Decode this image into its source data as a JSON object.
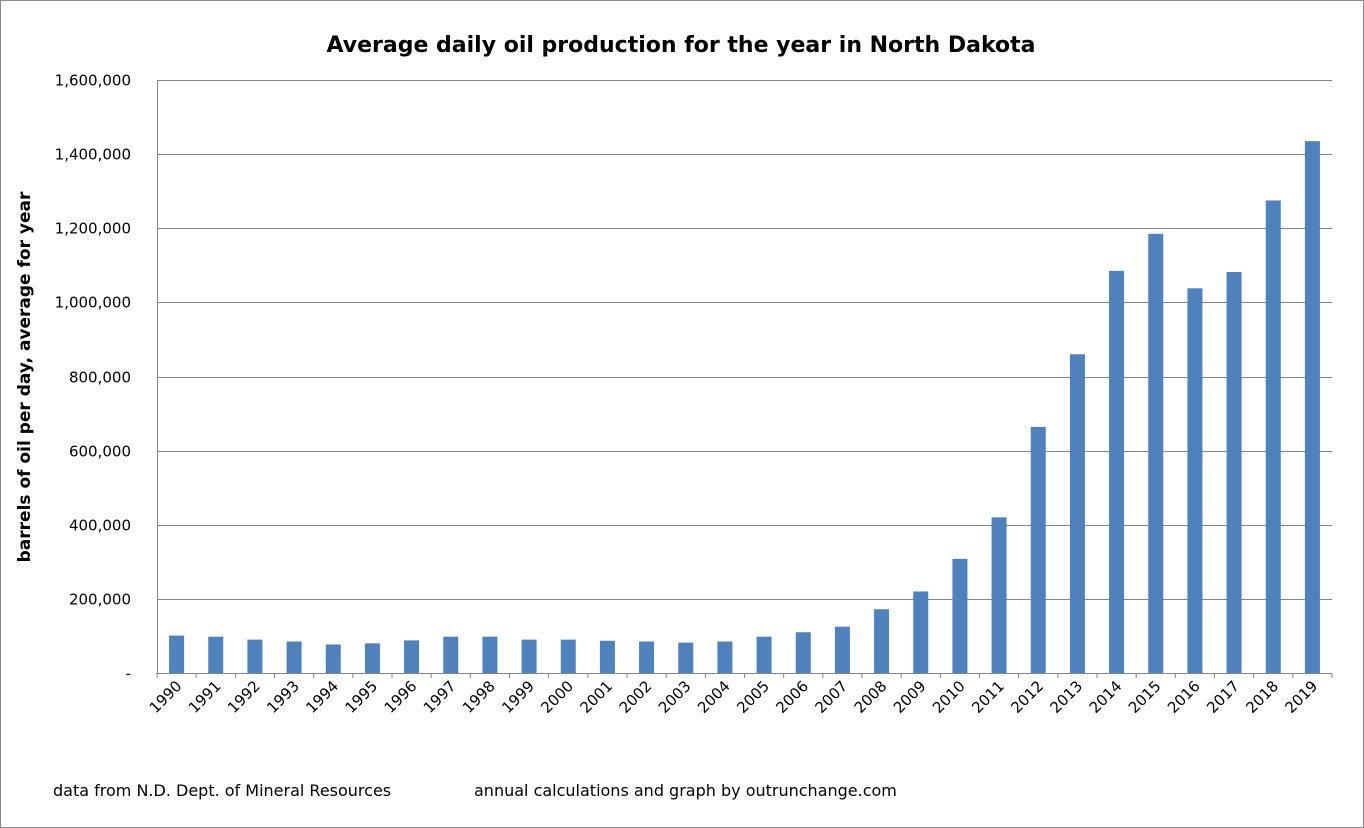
{
  "chart_data": {
    "type": "bar",
    "title": "Average daily oil production for the year in North Dakota",
    "xlabel": "",
    "ylabel": "barrels of oil per day, average for year",
    "ylim": [
      0,
      1600000
    ],
    "yticks": [
      0,
      200000,
      400000,
      600000,
      800000,
      1000000,
      1200000,
      1400000,
      1600000
    ],
    "ytick_labels": [
      "-",
      "200,000",
      "400,000",
      "600,000",
      "800,000",
      "1,000,000",
      "1,200,000",
      "1,400,000",
      "1,600,000"
    ],
    "categories": [
      "1990",
      "1991",
      "1992",
      "1993",
      "1994",
      "1995",
      "1996",
      "1997",
      "1998",
      "1999",
      "2000",
      "2001",
      "2002",
      "2003",
      "2004",
      "2005",
      "2006",
      "2007",
      "2008",
      "2009",
      "2010",
      "2011",
      "2012",
      "2013",
      "2014",
      "2015",
      "2016",
      "2017",
      "2018",
      "2019"
    ],
    "series": [
      {
        "name": "Average daily oil production",
        "color": "#4f81bd",
        "values": [
          101000,
          98000,
          90000,
          85000,
          77000,
          80000,
          88000,
          98000,
          98000,
          90000,
          90000,
          87000,
          85000,
          82000,
          85000,
          98000,
          110000,
          125000,
          172000,
          220000,
          308000,
          420000,
          664000,
          860000,
          1085000,
          1185000,
          1038000,
          1082000,
          1275000,
          1435000
        ]
      }
    ],
    "grid": true,
    "legend": "none"
  },
  "footer": {
    "source": "data from N.D. Dept. of Mineral Resources",
    "credit": "annual calculations and graph by outrunchange.com"
  }
}
